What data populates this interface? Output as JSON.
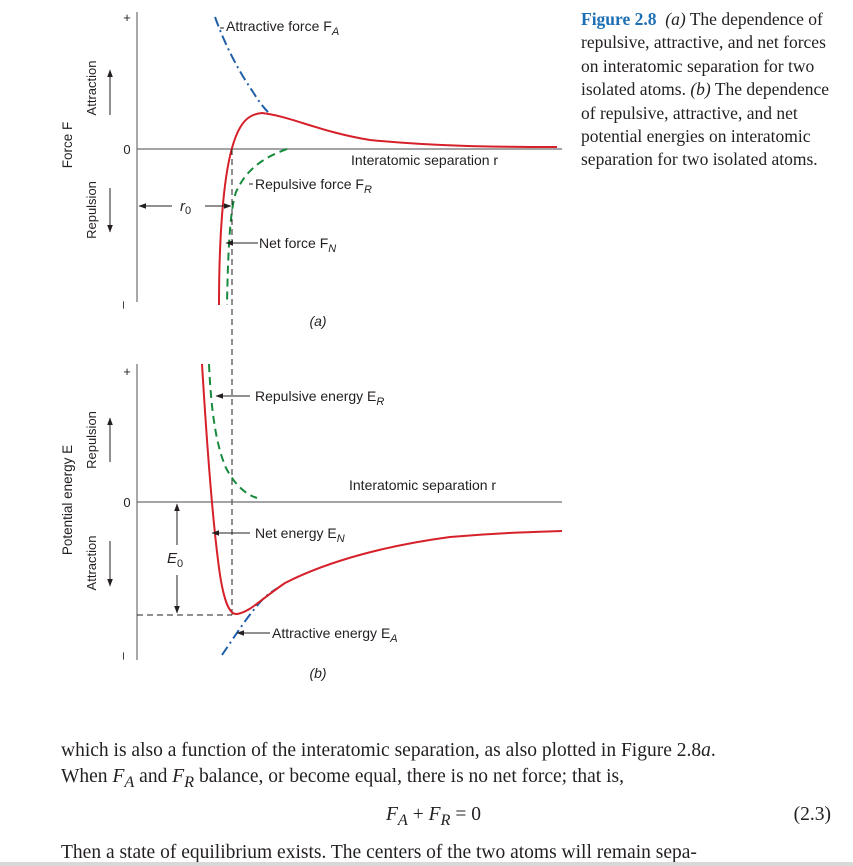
{
  "figure_a": {
    "y_axis_title": "Force F",
    "attraction_label": "Attraction",
    "repulsion_label": "Repulsion",
    "plus": "+",
    "minus": "–",
    "zero": "0",
    "x_axis_label": "Interatomic separation r",
    "attractive_label": "Attractive force F",
    "attractive_sub": "A",
    "repulsive_label": "Repulsive force F",
    "repulsive_sub": "R",
    "net_label": "Net force F",
    "net_sub": "N",
    "r0_label": "r",
    "r0_sub": "0",
    "panel_label": "(a)"
  },
  "figure_b": {
    "y_axis_title": "Potential energy E",
    "repulsion_label": "Repulsion",
    "attraction_label": "Attraction",
    "plus": "+",
    "minus": "–",
    "zero": "0",
    "x_axis_label": "Interatomic separation r",
    "repulsive_label": "Repulsive energy E",
    "repulsive_sub": "R",
    "net_label": "Net energy E",
    "net_sub": "N",
    "attractive_label": "Attractive energy E",
    "attractive_sub": "A",
    "e0_label": "E",
    "e0_sub": "0",
    "panel_label": "(b)"
  },
  "caption": {
    "figure_number": "Figure 2.8",
    "part_a": "(a)",
    "text_1": " The dependence of repulsive, attractive, and net forces on interatomic separation for two isolated atoms. ",
    "part_b": "(b)",
    "text_2": " The dependence of repulsive, attractive, and net potential energies on interatomic separation for two isolated atoms."
  },
  "body": {
    "line_1": "which is also a function of the interatomic separation, as also plotted in Figure 2.8",
    "line_1_ref": "a",
    "line_1_end": ".",
    "line_2_start": "When ",
    "fa": "F",
    "fa_sub": "A",
    "and_word": " and ",
    "fr": "F",
    "fr_sub": "R",
    "line_2_end": " balance, or become equal, there is no net force; that is,",
    "eq_fa": "F",
    "eq_fa_sub": "A",
    "eq_plus": " + ",
    "eq_fr": "F",
    "eq_fr_sub": "R",
    "eq_rest": " = 0",
    "eq_number": "(2.3)",
    "line_3": "Then a state of equilibrium exists. The centers of the two atoms will remain sepa-"
  },
  "colors": {
    "net_curve": "#d6202a",
    "attractive_curve": "#1f5fa8",
    "repulsive_curve": "#178a3e",
    "axis": "#6d6e71",
    "text": "#231f20",
    "figure_number": "#1d6fb5"
  }
}
